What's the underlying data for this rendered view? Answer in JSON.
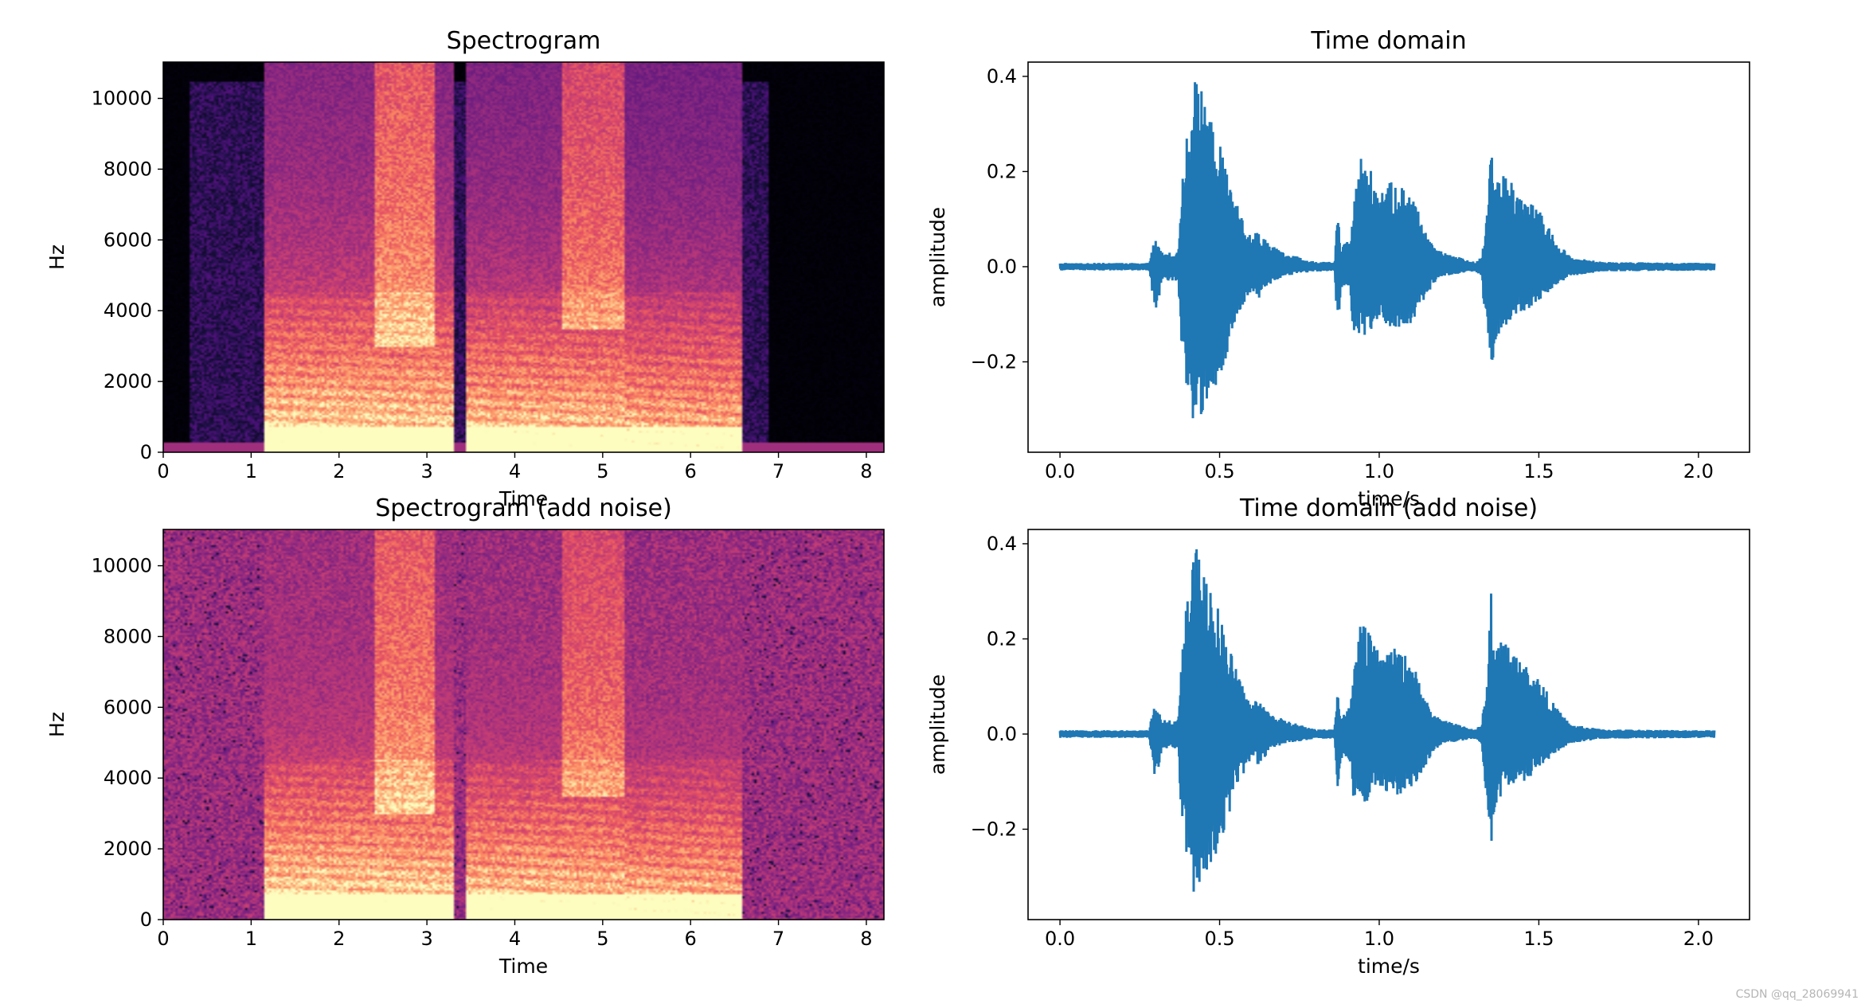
{
  "watermark": "CSDN @qq_28069941",
  "chart_data": [
    {
      "type": "heatmap",
      "title": "Spectrogram",
      "xlabel": "Time",
      "ylabel": "Hz",
      "xlim": [
        0,
        8.2
      ],
      "ylim": [
        0,
        11025
      ],
      "xticks": [
        0,
        1,
        2,
        3,
        4,
        5,
        6,
        7,
        8
      ],
      "yticks": [
        0,
        2000,
        4000,
        6000,
        8000,
        10000
      ],
      "colormap": "magma",
      "noise": false,
      "speech_segments": [
        {
          "start": 1.15,
          "end": 3.3,
          "energy": 1.0
        },
        {
          "start": 3.45,
          "end": 5.25,
          "energy": 0.95
        },
        {
          "start": 5.25,
          "end": 6.6,
          "energy": 0.9
        }
      ]
    },
    {
      "type": "line",
      "title": "Time domain",
      "xlabel": "time/s",
      "ylabel": "amplitude",
      "xlim": [
        -0.1,
        2.16
      ],
      "ylim": [
        -0.39,
        0.43
      ],
      "xticks": [
        0.0,
        0.5,
        1.0,
        1.5,
        2.0
      ],
      "yticks": [
        -0.2,
        0.0,
        0.2,
        0.4
      ],
      "tick_labels_x": [
        "0.0",
        "0.5",
        "1.0",
        "1.5",
        "2.0"
      ],
      "tick_labels_y": [
        "−0.2",
        "0.0",
        "0.2",
        "0.4"
      ],
      "color": "#1f77b4",
      "envelope": {
        "t": [
          0.0,
          0.28,
          0.29,
          0.3,
          0.32,
          0.37,
          0.38,
          0.4,
          0.42,
          0.45,
          0.5,
          0.55,
          0.58,
          0.6,
          0.62,
          0.65,
          0.7,
          0.8,
          0.86,
          0.87,
          0.88,
          0.91,
          0.92,
          0.94,
          0.97,
          1.0,
          1.05,
          1.1,
          1.15,
          1.17,
          1.2,
          1.3,
          1.32,
          1.34,
          1.35,
          1.36,
          1.4,
          1.45,
          1.5,
          1.55,
          1.6,
          1.7,
          2.05
        ],
        "pos": [
          0.008,
          0.008,
          0.05,
          0.06,
          0.03,
          0.03,
          0.18,
          0.3,
          0.4,
          0.36,
          0.26,
          0.14,
          0.09,
          0.06,
          0.08,
          0.05,
          0.03,
          0.01,
          0.01,
          0.12,
          0.04,
          0.06,
          0.13,
          0.24,
          0.21,
          0.17,
          0.18,
          0.16,
          0.07,
          0.04,
          0.03,
          0.01,
          0.02,
          0.12,
          0.33,
          0.19,
          0.2,
          0.15,
          0.12,
          0.06,
          0.02,
          0.01,
          0.008
        ],
        "neg": [
          -0.008,
          -0.008,
          -0.06,
          -0.1,
          -0.03,
          -0.03,
          -0.18,
          -0.3,
          -0.35,
          -0.3,
          -0.24,
          -0.12,
          -0.08,
          -0.05,
          -0.07,
          -0.04,
          -0.02,
          -0.01,
          -0.01,
          -0.15,
          -0.05,
          -0.06,
          -0.16,
          -0.15,
          -0.14,
          -0.12,
          -0.13,
          -0.12,
          -0.06,
          -0.04,
          -0.02,
          -0.01,
          -0.02,
          -0.18,
          -0.27,
          -0.16,
          -0.12,
          -0.1,
          -0.08,
          -0.04,
          -0.02,
          -0.01,
          -0.008
        ]
      }
    },
    {
      "type": "heatmap",
      "title": "Spectrogram (add noise)",
      "xlabel": "Time",
      "ylabel": "Hz",
      "xlim": [
        0,
        8.2
      ],
      "ylim": [
        0,
        11025
      ],
      "xticks": [
        0,
        1,
        2,
        3,
        4,
        5,
        6,
        7,
        8
      ],
      "yticks": [
        0,
        2000,
        4000,
        6000,
        8000,
        10000
      ],
      "colormap": "magma",
      "noise": true,
      "speech_segments": [
        {
          "start": 1.15,
          "end": 3.3,
          "energy": 1.0
        },
        {
          "start": 3.45,
          "end": 5.25,
          "energy": 0.95
        },
        {
          "start": 5.25,
          "end": 6.6,
          "energy": 0.9
        }
      ]
    },
    {
      "type": "line",
      "title": "Time domain (add noise)",
      "xlabel": "time/s",
      "ylabel": "amplitude",
      "xlim": [
        -0.1,
        2.16
      ],
      "ylim": [
        -0.39,
        0.43
      ],
      "xticks": [
        0.0,
        0.5,
        1.0,
        1.5,
        2.0
      ],
      "yticks": [
        -0.2,
        0.0,
        0.2,
        0.4
      ],
      "tick_labels_x": [
        "0.0",
        "0.5",
        "1.0",
        "1.5",
        "2.0"
      ],
      "tick_labels_y": [
        "−0.2",
        "0.0",
        "0.2",
        "0.4"
      ],
      "color": "#1f77b4",
      "envelope": {
        "t": [
          0.0,
          0.28,
          0.29,
          0.3,
          0.32,
          0.37,
          0.38,
          0.4,
          0.42,
          0.45,
          0.5,
          0.55,
          0.58,
          0.6,
          0.62,
          0.65,
          0.7,
          0.8,
          0.86,
          0.87,
          0.88,
          0.91,
          0.92,
          0.94,
          0.97,
          1.0,
          1.05,
          1.1,
          1.15,
          1.17,
          1.2,
          1.3,
          1.32,
          1.34,
          1.35,
          1.36,
          1.4,
          1.45,
          1.5,
          1.55,
          1.6,
          1.7,
          2.05
        ],
        "pos": [
          0.008,
          0.008,
          0.05,
          0.06,
          0.03,
          0.03,
          0.18,
          0.3,
          0.4,
          0.36,
          0.26,
          0.14,
          0.09,
          0.06,
          0.08,
          0.05,
          0.03,
          0.01,
          0.01,
          0.12,
          0.04,
          0.06,
          0.13,
          0.24,
          0.21,
          0.17,
          0.18,
          0.16,
          0.07,
          0.04,
          0.03,
          0.01,
          0.02,
          0.12,
          0.33,
          0.19,
          0.2,
          0.15,
          0.12,
          0.06,
          0.02,
          0.01,
          0.008
        ],
        "neg": [
          -0.008,
          -0.008,
          -0.06,
          -0.1,
          -0.03,
          -0.03,
          -0.18,
          -0.3,
          -0.35,
          -0.3,
          -0.24,
          -0.12,
          -0.08,
          -0.05,
          -0.07,
          -0.04,
          -0.02,
          -0.01,
          -0.01,
          -0.15,
          -0.05,
          -0.06,
          -0.16,
          -0.15,
          -0.14,
          -0.12,
          -0.13,
          -0.12,
          -0.06,
          -0.04,
          -0.02,
          -0.01,
          -0.02,
          -0.18,
          -0.27,
          -0.16,
          -0.12,
          -0.1,
          -0.08,
          -0.04,
          -0.02,
          -0.01,
          -0.008
        ]
      }
    }
  ]
}
